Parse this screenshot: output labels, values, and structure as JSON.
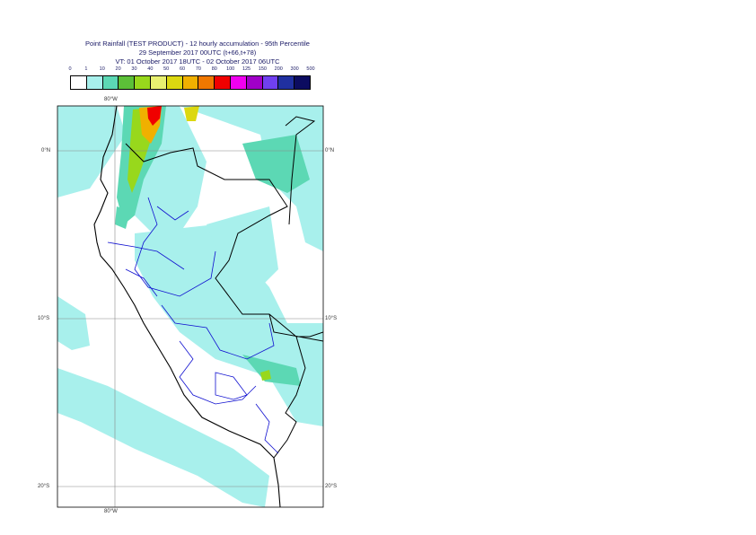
{
  "title": {
    "line1": "Point Rainfall (TEST PRODUCT) - 12 hourly accumulation - 95th Percentile",
    "line2": "29 September 2017 00UTC (t+66,t+78)",
    "line3": "VT: 01 October 2017 18UTC - 02 October 2017 06UTC"
  },
  "legend": {
    "ticks": [
      "0",
      "1",
      "10",
      "20",
      "30",
      "40",
      "50",
      "60",
      "70",
      "80",
      "100",
      "125",
      "150",
      "200",
      "300",
      "500"
    ],
    "colors": [
      "#ffffff",
      "#a8f0ec",
      "#5cd8b4",
      "#5cc038",
      "#98d81c",
      "#e8f070",
      "#dcd810",
      "#f0b000",
      "#f07800",
      "#f00000",
      "#f000f0",
      "#a000c8",
      "#7040f0",
      "#2030a0",
      "#0c0c60"
    ]
  },
  "axes": {
    "top_lon": "80°W",
    "bottom_lon": "80°W",
    "lat_labels": [
      "0°N",
      "10°S",
      "20°S"
    ]
  },
  "colors": {
    "sea_rain": "#a8f0ec",
    "heavy_rain": "#5cd8b4",
    "coastline": "#000000",
    "border": "#1010d0",
    "grid": "#888888"
  }
}
